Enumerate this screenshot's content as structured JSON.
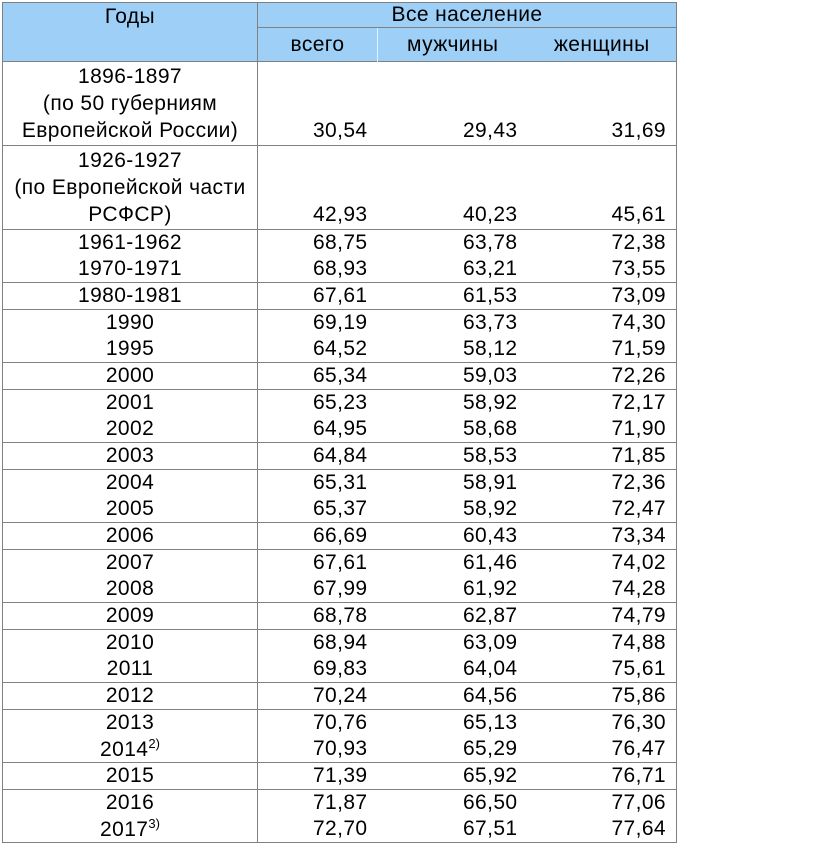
{
  "colors": {
    "header_bg": "#9ECFF7",
    "border_color": "#808080",
    "divider_color": "#E4F0FB"
  },
  "table": {
    "header": {
      "years": "Годы",
      "population": "Все население",
      "sub": [
        "всего",
        "мужчины",
        "женщины"
      ]
    },
    "rows": [
      {
        "year_lines": [
          "1896-1897",
          "(по 50 губерниям",
          "Европейской России)"
        ],
        "total": "30,54",
        "men": "29,43",
        "women": "31,69",
        "group_start": true
      },
      {
        "year_lines": [
          "1926-1927",
          "(по Европейской части",
          "РСФСР)"
        ],
        "total": "42,93",
        "men": "40,23",
        "women": "45,61",
        "group_start": true
      },
      {
        "year": "1961-1962",
        "total": "68,75",
        "men": "63,78",
        "women": "72,38",
        "group_start": true
      },
      {
        "year": "1970-1971",
        "total": "68,93",
        "men": "63,21",
        "women": "73,55",
        "group_start": false
      },
      {
        "year": "1980-1981",
        "total": "67,61",
        "men": "61,53",
        "women": "73,09",
        "group_start": true
      },
      {
        "year": "1990",
        "total": "69,19",
        "men": "63,73",
        "women": "74,30",
        "group_start": true
      },
      {
        "year": "1995",
        "total": "64,52",
        "men": "58,12",
        "women": "71,59",
        "group_start": false
      },
      {
        "year": "2000",
        "total": "65,34",
        "men": "59,03",
        "women": "72,26",
        "group_start": true
      },
      {
        "year": "2001",
        "total": "65,23",
        "men": "58,92",
        "women": "72,17",
        "group_start": true
      },
      {
        "year": "2002",
        "total": "64,95",
        "men": "58,68",
        "women": "71,90",
        "group_start": false
      },
      {
        "year": "2003",
        "total": "64,84",
        "men": "58,53",
        "women": "71,85",
        "group_start": true
      },
      {
        "year": "2004",
        "total": "65,31",
        "men": "58,91",
        "women": "72,36",
        "group_start": true
      },
      {
        "year": "2005",
        "total": "65,37",
        "men": "58,92",
        "women": "72,47",
        "group_start": false
      },
      {
        "year": "2006",
        "total": "66,69",
        "men": "60,43",
        "women": "73,34",
        "group_start": true
      },
      {
        "year": "2007",
        "total": "67,61",
        "men": "61,46",
        "women": "74,02",
        "group_start": true
      },
      {
        "year": "2008",
        "total": "67,99",
        "men": "61,92",
        "women": "74,28",
        "group_start": false
      },
      {
        "year": "2009",
        "total": "68,78",
        "men": "62,87",
        "women": "74,79",
        "group_start": true
      },
      {
        "year": "2010",
        "total": "68,94",
        "men": "63,09",
        "women": "74,88",
        "group_start": true
      },
      {
        "year": "2011",
        "total": "69,83",
        "men": "64,04",
        "women": "75,61",
        "group_start": false
      },
      {
        "year": "2012",
        "total": "70,24",
        "men": "64,56",
        "women": "75,86",
        "group_start": true
      },
      {
        "year": "2013",
        "total": "70,76",
        "men": "65,13",
        "women": "76,30",
        "group_start": true
      },
      {
        "year": "2014",
        "note": "2)",
        "total": "70,93",
        "men": "65,29",
        "women": "76,47",
        "group_start": false
      },
      {
        "year": "2015",
        "total": "71,39",
        "men": "65,92",
        "women": "76,71",
        "group_start": true
      },
      {
        "year": "2016",
        "total": "71,87",
        "men": "66,50",
        "women": "77,06",
        "group_start": true
      },
      {
        "year": "2017",
        "note": "3)",
        "total": "72,70",
        "men": "67,51",
        "women": "77,64",
        "group_start": false
      }
    ]
  }
}
